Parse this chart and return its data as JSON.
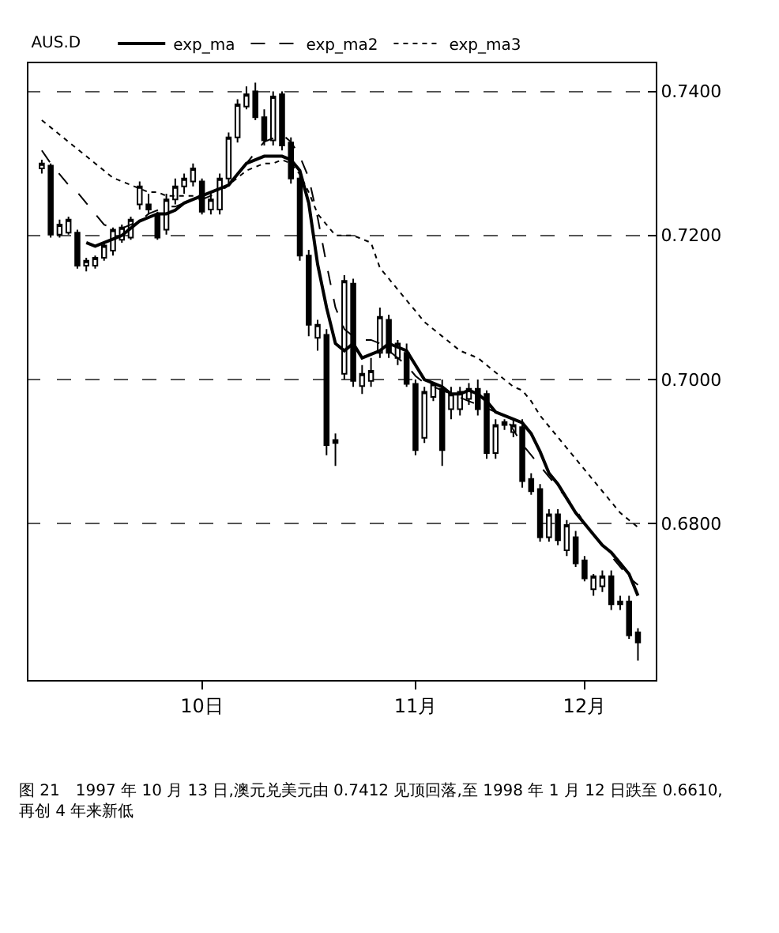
{
  "chart_data": {
    "type": "candlestick",
    "categories": [
      null,
      null,
      null,
      null,
      null,
      null,
      null,
      null,
      null,
      null,
      null,
      null,
      null,
      null,
      null,
      null,
      null,
      null,
      "10日",
      null,
      null,
      null,
      null,
      null,
      null,
      null,
      null,
      null,
      null,
      null,
      null,
      null,
      null,
      null,
      null,
      null,
      null,
      null,
      null,
      null,
      null,
      null,
      "11月",
      null,
      null,
      null,
      null,
      null,
      null,
      null,
      null,
      null,
      null,
      null,
      null,
      null,
      null,
      null,
      null,
      null,
      null,
      "12月",
      null,
      null,
      null,
      null,
      null,
      null
    ],
    "ohlc": [
      [
        0.7293,
        0.7305,
        0.7286,
        0.73
      ],
      [
        0.7297,
        0.73,
        0.7197,
        0.7201
      ],
      [
        0.7201,
        0.7222,
        0.7197,
        0.7215
      ],
      [
        0.7204,
        0.7226,
        0.7201,
        0.7222
      ],
      [
        0.7204,
        0.7208,
        0.7154,
        0.7158
      ],
      [
        0.7158,
        0.7169,
        0.715,
        0.7165
      ],
      [
        0.7158,
        0.7172,
        0.7154,
        0.7169
      ],
      [
        0.7169,
        0.719,
        0.7165,
        0.7186
      ],
      [
        0.7179,
        0.7211,
        0.7172,
        0.7208
      ],
      [
        0.7194,
        0.7215,
        0.719,
        0.7211
      ],
      [
        0.7197,
        0.7226,
        0.7194,
        0.7222
      ],
      [
        0.7243,
        0.7275,
        0.7236,
        0.7268
      ],
      [
        0.7243,
        0.7258,
        0.7229,
        0.7236
      ],
      [
        0.7229,
        0.7233,
        0.7194,
        0.7197
      ],
      [
        0.7208,
        0.7258,
        0.7201,
        0.725
      ],
      [
        0.725,
        0.7279,
        0.7243,
        0.7268
      ],
      [
        0.7268,
        0.7286,
        0.7258,
        0.7279
      ],
      [
        0.7275,
        0.73,
        0.7268,
        0.7293
      ],
      [
        0.7275,
        0.7279,
        0.7229,
        0.7233
      ],
      [
        0.7236,
        0.7258,
        0.7229,
        0.725
      ],
      [
        0.7236,
        0.7286,
        0.7229,
        0.7279
      ],
      [
        0.7279,
        0.7343,
        0.7272,
        0.7336
      ],
      [
        0.7336,
        0.7389,
        0.7329,
        0.7382
      ],
      [
        0.7379,
        0.7407,
        0.7375,
        0.7396
      ],
      [
        0.74,
        0.7412,
        0.736,
        0.7364
      ],
      [
        0.7364,
        0.7375,
        0.7325,
        0.7332
      ],
      [
        0.7332,
        0.74,
        0.7325,
        0.7393
      ],
      [
        0.7396,
        0.74,
        0.7318,
        0.7325
      ],
      [
        0.7329,
        0.7336,
        0.7272,
        0.7279
      ],
      [
        0.7279,
        0.7286,
        0.7165,
        0.7172
      ],
      [
        0.7172,
        0.718,
        0.706,
        0.7076
      ],
      [
        0.7058,
        0.7083,
        0.704,
        0.7076
      ],
      [
        0.7062,
        0.707,
        0.6895,
        0.6909
      ],
      [
        0.6912,
        0.6925,
        0.688,
        0.6916
      ],
      [
        0.7008,
        0.7145,
        0.7,
        0.7137
      ],
      [
        0.7133,
        0.714,
        0.699,
        0.6998
      ],
      [
        0.6991,
        0.702,
        0.698,
        0.7008
      ],
      [
        0.6998,
        0.703,
        0.699,
        0.7012
      ],
      [
        0.7037,
        0.71,
        0.703,
        0.7087
      ],
      [
        0.7083,
        0.709,
        0.703,
        0.7037
      ],
      [
        0.703,
        0.7055,
        0.702,
        0.705
      ],
      [
        0.7037,
        0.705,
        0.699,
        0.6994
      ],
      [
        0.6994,
        0.7,
        0.6895,
        0.6902
      ],
      [
        0.6919,
        0.699,
        0.6912,
        0.6983
      ],
      [
        0.6976,
        0.6995,
        0.697,
        0.6994
      ],
      [
        0.6987,
        0.7,
        0.688,
        0.6902
      ],
      [
        0.6959,
        0.699,
        0.6945,
        0.698
      ],
      [
        0.6959,
        0.699,
        0.695,
        0.6983
      ],
      [
        0.6973,
        0.6995,
        0.6965,
        0.6987
      ],
      [
        0.6987,
        0.7,
        0.695,
        0.6959
      ],
      [
        0.698,
        0.6985,
        0.689,
        0.6898
      ],
      [
        0.6898,
        0.6945,
        0.689,
        0.6937
      ],
      [
        0.6937,
        0.6945,
        0.693,
        0.6941
      ],
      [
        0.6927,
        0.6945,
        0.692,
        0.6937
      ],
      [
        0.6934,
        0.6945,
        0.685,
        0.6859
      ],
      [
        0.6862,
        0.687,
        0.684,
        0.6845
      ],
      [
        0.6848,
        0.6855,
        0.6775,
        0.6781
      ],
      [
        0.6781,
        0.682,
        0.6775,
        0.6813
      ],
      [
        0.6813,
        0.682,
        0.677,
        0.6777
      ],
      [
        0.6763,
        0.6805,
        0.6755,
        0.6798
      ],
      [
        0.6781,
        0.679,
        0.674,
        0.6745
      ],
      [
        0.6749,
        0.6755,
        0.672,
        0.6724
      ],
      [
        0.6709,
        0.673,
        0.67,
        0.6727
      ],
      [
        0.6713,
        0.6735,
        0.6705,
        0.6727
      ],
      [
        0.6727,
        0.6735,
        0.668,
        0.6688
      ],
      [
        0.6688,
        0.67,
        0.668,
        0.6692
      ],
      [
        0.6692,
        0.67,
        0.664,
        0.6645
      ],
      [
        0.6649,
        0.6655,
        0.661,
        0.6635
      ]
    ],
    "title": "AUS.D",
    "series": [
      {
        "name": "exp_ma",
        "type": "line",
        "color": "#000000",
        "line_style": "solid",
        "values": [
          null,
          null,
          null,
          null,
          null,
          0.719,
          0.7185,
          0.719,
          0.7195,
          0.72,
          0.721,
          0.722,
          0.7225,
          0.723,
          0.723,
          0.7235,
          0.7245,
          0.725,
          0.7255,
          0.726,
          0.7265,
          0.727,
          0.7285,
          0.73,
          0.7305,
          0.731,
          0.731,
          0.731,
          0.7305,
          0.729,
          0.7245,
          0.716,
          0.71,
          0.705,
          0.704,
          0.705,
          0.703,
          0.7035,
          0.704,
          0.705,
          0.7045,
          0.704,
          0.702,
          0.7,
          0.6995,
          0.699,
          0.698,
          0.698,
          0.6985,
          0.698,
          0.697,
          0.6955,
          0.695,
          0.6945,
          0.694,
          0.6925,
          0.69,
          0.687,
          0.6855,
          0.6835,
          0.6815,
          0.68,
          0.6785,
          0.677,
          0.676,
          0.6745,
          0.673,
          0.67
        ]
      },
      {
        "name": "exp_ma2",
        "type": "line",
        "color": "#000000",
        "line_style": "dashed",
        "values": [
          0.7318,
          0.73,
          0.7285,
          0.727,
          0.726,
          0.7245,
          0.723,
          0.7215,
          0.721,
          0.721,
          0.7215,
          0.722,
          0.723,
          0.7235,
          0.724,
          0.724,
          0.7245,
          0.725,
          0.725,
          0.7255,
          0.726,
          0.727,
          0.7285,
          0.73,
          0.7315,
          0.733,
          0.7335,
          0.734,
          0.733,
          0.731,
          0.728,
          0.7225,
          0.716,
          0.71,
          0.707,
          0.706,
          0.7055,
          0.7055,
          0.705,
          0.704,
          0.703,
          0.702,
          0.7005,
          0.6995,
          0.699,
          0.6985,
          0.698,
          0.6975,
          0.697,
          0.6965,
          0.696,
          0.6955,
          0.695,
          0.693,
          0.691,
          0.6895,
          0.688,
          0.6865,
          0.685,
          0.6835,
          0.682,
          0.68,
          0.6785,
          0.677,
          0.6755,
          0.674,
          0.6725,
          0.6715
        ]
      },
      {
        "name": "exp_ma3",
        "type": "line",
        "color": "#000000",
        "line_style": "dotted",
        "values": [
          0.736,
          0.735,
          0.734,
          0.733,
          0.732,
          0.731,
          0.73,
          0.729,
          0.728,
          0.7275,
          0.727,
          0.7265,
          0.726,
          0.726,
          0.7255,
          0.7255,
          0.7255,
          0.7255,
          0.7255,
          0.726,
          0.7265,
          0.727,
          0.728,
          0.729,
          0.7295,
          0.73,
          0.73,
          0.7305,
          0.73,
          0.7285,
          0.726,
          0.723,
          0.7215,
          0.72,
          0.72,
          0.72,
          0.7195,
          0.719,
          0.7155,
          0.714,
          0.7125,
          0.711,
          0.7095,
          0.708,
          0.707,
          0.706,
          0.705,
          0.704,
          0.7035,
          0.703,
          0.702,
          0.701,
          0.7,
          0.699,
          0.6985,
          0.697,
          0.695,
          0.6935,
          0.692,
          0.6905,
          0.689,
          0.6875,
          0.686,
          0.6845,
          0.683,
          0.6815,
          0.6805,
          0.6795
        ]
      }
    ],
    "ylim": [
      0.6583,
      0.7439
    ],
    "yticks": [
      {
        "value": 0.74,
        "label": "0.7400"
      },
      {
        "value": 0.72,
        "label": "0.7200"
      },
      {
        "value": 0.7,
        "label": "0.7000"
      },
      {
        "value": 0.68,
        "label": "0.6800"
      }
    ],
    "grid": "y",
    "legend": "top left",
    "annotations": [
      "图 21　1997 年 10 月 13 日,澳元兑美元由 0.7412 见顶回落,至 1998 年 1 月 12 日跌至 0.6610,再创 4 年来新低"
    ]
  }
}
